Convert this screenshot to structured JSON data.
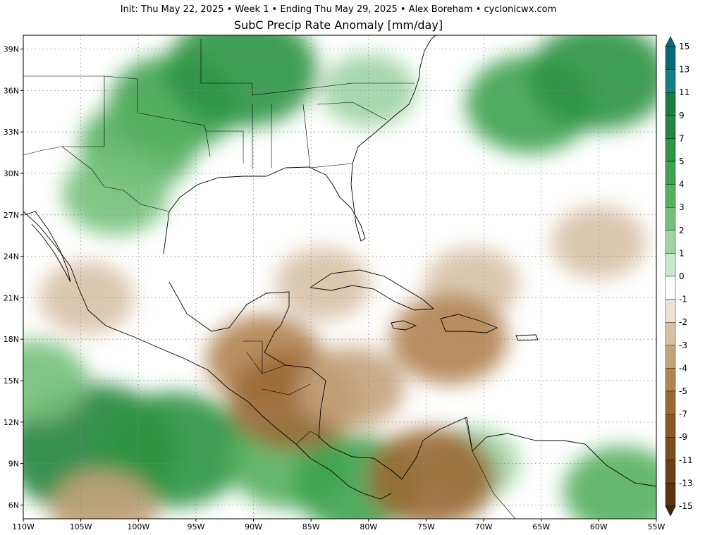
{
  "header": {
    "line1": "Init: Thu May 22, 2025  •  Week 1  •  Ending Thu May 29, 2025  •  Alex Boreham  •  cyclonicwx.com",
    "title": "SubC Precip Rate Anomaly [mm/day]"
  },
  "map": {
    "lon_range": [
      -110,
      -55
    ],
    "lat_range": [
      5,
      40
    ],
    "gridlines": true,
    "lon_ticks": [
      "110W",
      "105W",
      "100W",
      "95W",
      "90W",
      "85W",
      "80W",
      "75W",
      "70W",
      "65W",
      "60W",
      "55W"
    ],
    "lat_ticks": [
      "39N",
      "36N",
      "33N",
      "30N",
      "27N",
      "24N",
      "21N",
      "18N",
      "15N",
      "12N",
      "9N",
      "6N"
    ],
    "features": {
      "wet": [
        {
          "lon": -97,
          "lat": 35,
          "level": 5
        },
        {
          "lon": -91,
          "lat": 37.5,
          "level": 7
        },
        {
          "lon": -100,
          "lat": 32,
          "level": 4
        },
        {
          "lon": -102,
          "lat": 28.5,
          "level": 3
        },
        {
          "lon": -80,
          "lat": 36,
          "level": 2
        },
        {
          "lon": -66,
          "lat": 35,
          "level": 5
        },
        {
          "lon": -60,
          "lat": 37,
          "level": 6
        },
        {
          "lon": -104,
          "lat": 10,
          "level": 9
        },
        {
          "lon": -97,
          "lat": 10,
          "level": 7
        },
        {
          "lon": -87,
          "lat": 9,
          "level": 4
        },
        {
          "lon": -81,
          "lat": 7.5,
          "level": 5
        },
        {
          "lon": -58,
          "lat": 7,
          "level": 4
        },
        {
          "lon": -109,
          "lat": 15,
          "level": 3
        },
        {
          "lon": -71,
          "lat": 9,
          "level": 2
        }
      ],
      "dry": [
        {
          "lon": -84,
          "lat": 22,
          "level": -2
        },
        {
          "lon": -71,
          "lat": 22,
          "level": -2
        },
        {
          "lon": -60,
          "lat": 25,
          "level": -2
        },
        {
          "lon": -89,
          "lat": 16.5,
          "level": -4
        },
        {
          "lon": -86.5,
          "lat": 13.5,
          "level": -5
        },
        {
          "lon": -81.5,
          "lat": 14.5,
          "level": -3
        },
        {
          "lon": -73,
          "lat": 18,
          "level": -4
        },
        {
          "lon": -74.5,
          "lat": 8,
          "level": -5
        },
        {
          "lon": -103,
          "lat": 5.5,
          "level": -3
        },
        {
          "lon": -104.5,
          "lat": 21,
          "level": -2
        }
      ]
    }
  },
  "colorbar": {
    "labels": [
      "15",
      "13",
      "11",
      "9",
      "7",
      "5",
      "4",
      "3",
      "2",
      "1",
      "0",
      "-1",
      "-2",
      "-3",
      "-4",
      "-5",
      "-7",
      "-9",
      "-11",
      "-13",
      "-15"
    ],
    "colors": {
      "15": "#0b6a78",
      "13": "#167f80",
      "11": "#1e7b44",
      "9": "#26853f",
      "7": "#2f9344",
      "5": "#3ea24f",
      "4": "#55b060",
      "3": "#75c17c",
      "2": "#9fd4a4",
      "1": "#cbe8cd",
      "0": "#ffffff",
      "-1": "#ece3d6",
      "-2": "#d7c2a6",
      "-3": "#c4a27c",
      "-4": "#b0834f",
      "-5": "#9a6a34",
      "-7": "#8a5a26",
      "-9": "#7a4d1f",
      "-11": "#6a4019",
      "-13": "#5a3313",
      "-15": "#4a260c"
    }
  }
}
